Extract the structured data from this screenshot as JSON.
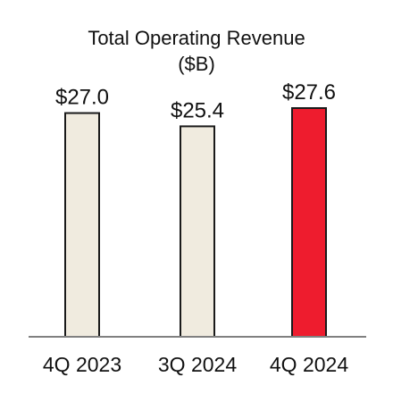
{
  "chart_data": {
    "type": "bar",
    "title": "Total Operating Revenue",
    "subtitle": "($B)",
    "categories": [
      "4Q 2023",
      "3Q 2024",
      "4Q 2024"
    ],
    "values": [
      27.0,
      25.4,
      27.6
    ],
    "value_labels": [
      "$27.0",
      "$25.4",
      "$27.6"
    ],
    "xlabel": "",
    "ylabel": "",
    "ylim": [
      0,
      27.6
    ],
    "grid": false,
    "bar_colors": [
      "#f0ebdf",
      "#f0ebdf",
      "#ee1c2e"
    ],
    "bar_stroke": "#1a1a1a",
    "axis_color": "#808080"
  }
}
